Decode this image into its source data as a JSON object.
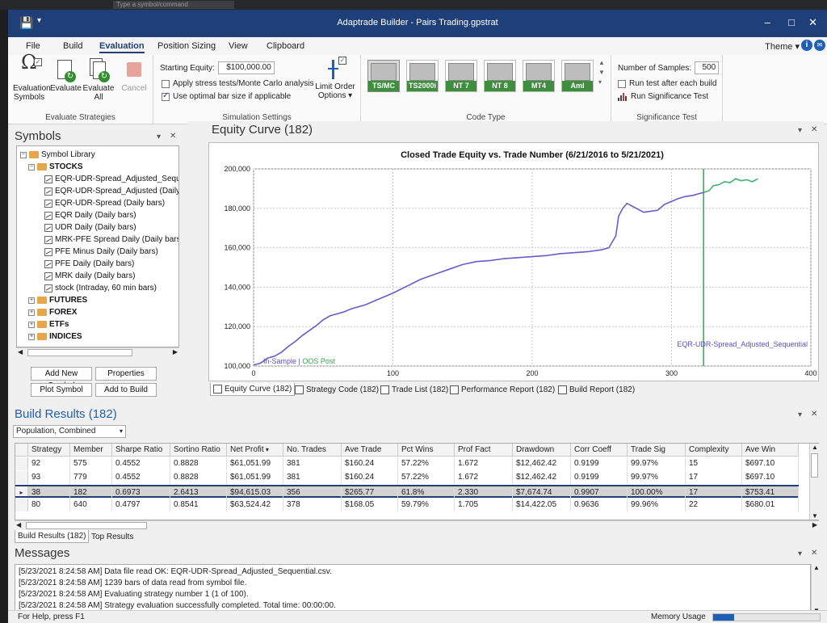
{
  "outer": {
    "search_placeholder": "Type a symbol/command"
  },
  "window": {
    "title": "Adaptrade Builder - Pairs Trading.gpstrat"
  },
  "menu": {
    "tabs": [
      "File",
      "Build",
      "Evaluation",
      "Position Sizing",
      "View",
      "Clipboard"
    ],
    "active": "Evaluation",
    "theme_label": "Theme"
  },
  "ribbon": {
    "evaluate_group": {
      "name": "Evaluate Strategies",
      "buttons": [
        {
          "label": "Evaluation Symbols",
          "disabled": false
        },
        {
          "label": "Evaluate",
          "disabled": false
        },
        {
          "label": "Evaluate All",
          "disabled": false
        },
        {
          "label": "Cancel",
          "disabled": true
        }
      ]
    },
    "simulation_group": {
      "name": "Simulation Settings",
      "starting_equity_label": "Starting Equity:",
      "starting_equity_value": "$100,000.00",
      "stress_label": "Apply stress tests/Monte Carlo analysis",
      "stress_checked": false,
      "optimal_label": "Use optimal bar size if applicable",
      "optimal_checked": true,
      "limit_order_label": "Limit Order Options"
    },
    "code_group": {
      "name": "Code Type",
      "types": [
        "TS/MC",
        "TS2000i",
        "NT 7",
        "NT 8",
        "MT4",
        "Aml"
      ],
      "selected": "TS/MC"
    },
    "significance_group": {
      "name": "Significance Test",
      "samples_label": "Number of Samples:",
      "samples_value": "500",
      "run_after_label": "Run test after each build",
      "run_after_checked": false,
      "run_test_label": "Run Significance Test"
    }
  },
  "symbols": {
    "title": "Symbols",
    "library_label": "Symbol Library",
    "stocks_label": "STOCKS",
    "stock_items": [
      "EQR-UDR-Spread_Adjusted_Sequential (Daily bars)",
      "EQR-UDR-Spread_Adjusted (Daily bars)",
      "EQR-UDR-Spread (Daily bars)",
      "EQR Daily (Daily bars)",
      "UDR Daily (Daily bars)",
      "MRK-PFE Spread Daily (Daily bars)",
      "PFE Minus Daily (Daily bars)",
      "PFE Daily (Daily bars)",
      "MRK daily (Daily bars)",
      "stock (Intraday, 60 min bars)"
    ],
    "collapsed": [
      "FUTURES",
      "FOREX",
      "ETFs",
      "INDICES"
    ],
    "buttons": [
      "Add New Symbol",
      "Properties",
      "Plot Symbol",
      "Add to Build"
    ]
  },
  "equity": {
    "title": "Equity Curve (182)",
    "tabs": [
      "Equity Curve (182)",
      "Strategy Code (182)",
      "Trade List (182)",
      "Performance Report (182)",
      "Build Report (182)"
    ],
    "active_tab": "Equity Curve (182)"
  },
  "chart_data": {
    "type": "line",
    "title": "Closed Trade Equity vs. Trade Number (6/21/2016 to 5/21/2021)",
    "xlabel": "",
    "ylabel": "",
    "xlim": [
      0,
      400
    ],
    "ylim": [
      100000,
      200000
    ],
    "x_ticks": [
      0,
      100,
      200,
      300,
      400
    ],
    "y_ticks": [
      100000,
      120000,
      140000,
      160000,
      180000,
      200000
    ],
    "y_tick_labels": [
      "100,000",
      "120,000",
      "140,000",
      "160,000",
      "180,000",
      "200,000"
    ],
    "grid": true,
    "series_label": "EQR-UDR-Spread_Adjusted_Sequential",
    "in_sample_label": "In-Sample",
    "separator": " | ",
    "oos_label": "OOS Post",
    "oos_start_trade": 323,
    "colors": {
      "in_sample": "#6a5acd",
      "oos": "#3cb371",
      "divider": "#2eaa4a"
    },
    "in_sample": {
      "x": [
        0,
        5,
        10,
        15,
        20,
        25,
        30,
        35,
        40,
        45,
        50,
        55,
        60,
        65,
        70,
        80,
        90,
        100,
        110,
        120,
        130,
        140,
        150,
        160,
        170,
        180,
        190,
        200,
        210,
        220,
        230,
        240,
        250,
        255,
        260,
        262,
        265,
        268,
        272,
        276,
        280,
        285,
        290,
        295,
        300,
        305,
        310,
        315,
        320,
        323
      ],
      "y": [
        100500,
        101500,
        104000,
        105000,
        107000,
        110000,
        112500,
        115500,
        118000,
        120500,
        123500,
        125500,
        126500,
        127500,
        129000,
        131000,
        134000,
        137000,
        140500,
        144000,
        146500,
        149000,
        151500,
        153000,
        153500,
        154500,
        155000,
        155500,
        156000,
        157000,
        157500,
        158000,
        159000,
        160000,
        166000,
        176000,
        180000,
        182500,
        181000,
        179500,
        178000,
        178500,
        179000,
        182000,
        183500,
        185000,
        186000,
        186500,
        187500,
        188000
      ]
    },
    "oos": {
      "x": [
        323,
        327,
        330,
        334,
        338,
        342,
        346,
        350,
        354,
        358,
        362
      ],
      "y": [
        188000,
        189000,
        191500,
        192000,
        193500,
        193000,
        195000,
        194000,
        194500,
        193500,
        195000
      ]
    }
  },
  "build": {
    "title": "Build Results (182)",
    "population_value": "Population, Combined",
    "columns": [
      "Strategy",
      "Member",
      "Sharpe Ratio",
      "Sortino Ratio",
      "Net Profit",
      "No. Trades",
      "Ave Trade",
      "Pct Wins",
      "Prof Fact",
      "Drawdown",
      "Corr Coeff",
      "Trade Sig",
      "Complexity",
      "Ave Win"
    ],
    "rows": [
      [
        "92",
        "575",
        "0.4552",
        "0.8828",
        "$61,051.99",
        "381",
        "$160.24",
        "57.22%",
        "1.672",
        "$12,462.42",
        "0.9199",
        "99.97%",
        "15",
        "$697.10"
      ],
      [
        "93",
        "779",
        "0.4552",
        "0.8828",
        "$61,051.99",
        "381",
        "$160.24",
        "57.22%",
        "1.672",
        "$12,462.42",
        "0.9199",
        "99.97%",
        "17",
        "$697.10"
      ],
      [
        "38",
        "182",
        "0.6973",
        "2.6413",
        "$94,615.03",
        "356",
        "$265.77",
        "61.8%",
        "2.330",
        "$7,674.74",
        "0.9907",
        "100.00%",
        "17",
        "$753.41"
      ],
      [
        "80",
        "640",
        "0.4797",
        "0.8541",
        "$63,524.42",
        "378",
        "$168.05",
        "59.79%",
        "1.705",
        "$14,422.05",
        "0.9636",
        "99.96%",
        "22",
        "$680.01"
      ]
    ],
    "selected_row": 2,
    "tabs": [
      "Build Results (182)",
      "Top Results"
    ]
  },
  "messages": {
    "title": "Messages",
    "lines": [
      "[5/23/2021 8:24:58 AM]  Data file read OK: EQR-UDR-Spread_Adjusted_Sequential.csv.",
      "[5/23/2021 8:24:58 AM]  1239 bars of data read from symbol file.",
      "[5/23/2021 8:24:58 AM]  Evaluating strategy number 1 (1 of 100).",
      "[5/23/2021 8:24:58 AM]  Strategy evaluation successfully completed. Total time: 00:00:00."
    ]
  },
  "status": {
    "help_text": "For Help, press F1",
    "memory_label": "Memory Usage",
    "memory_fraction": 0.2
  }
}
